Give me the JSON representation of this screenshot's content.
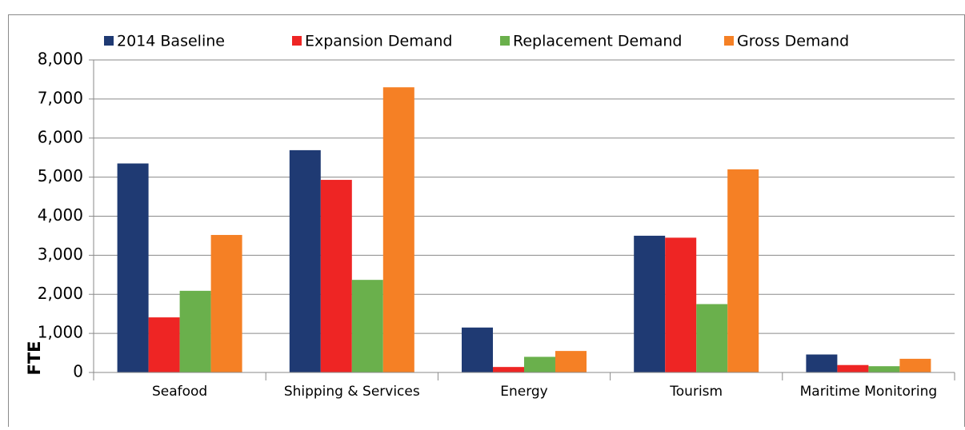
{
  "chart_data": {
    "type": "bar",
    "y_label": "FTE",
    "categories": [
      "Seafood",
      "Shipping & Services",
      "Energy",
      "Tourism",
      "Maritime Monitoring"
    ],
    "series": [
      {
        "name": "2014 Baseline",
        "color": "#1f3a73",
        "values": [
          5350,
          5690,
          1150,
          3500,
          460
        ]
      },
      {
        "name": "Expansion Demand",
        "color": "#ee2524",
        "values": [
          1410,
          4930,
          140,
          3450,
          190
        ]
      },
      {
        "name": "Replacement Demand",
        "color": "#6ab04c",
        "values": [
          2090,
          2370,
          400,
          1750,
          160
        ]
      },
      {
        "name": "Gross Demand",
        "color": "#f58025",
        "values": [
          3520,
          7300,
          550,
          5200,
          350
        ]
      }
    ],
    "ylim": [
      0,
      8000
    ],
    "yticks": [
      0,
      {
        "value": 1000,
        "label": "1,000"
      },
      {
        "value": 2000,
        "label": "2,000"
      },
      {
        "value": 3000,
        "label": "3,000"
      },
      {
        "value": 4000,
        "label": "4,000"
      },
      {
        "value": 5000,
        "label": "5,000"
      },
      {
        "value": 6000,
        "label": "6,000"
      },
      {
        "value": 7000,
        "label": "7,000"
      },
      {
        "value": 8000,
        "label": "8,000"
      }
    ],
    "grid": true,
    "legend": "top"
  }
}
